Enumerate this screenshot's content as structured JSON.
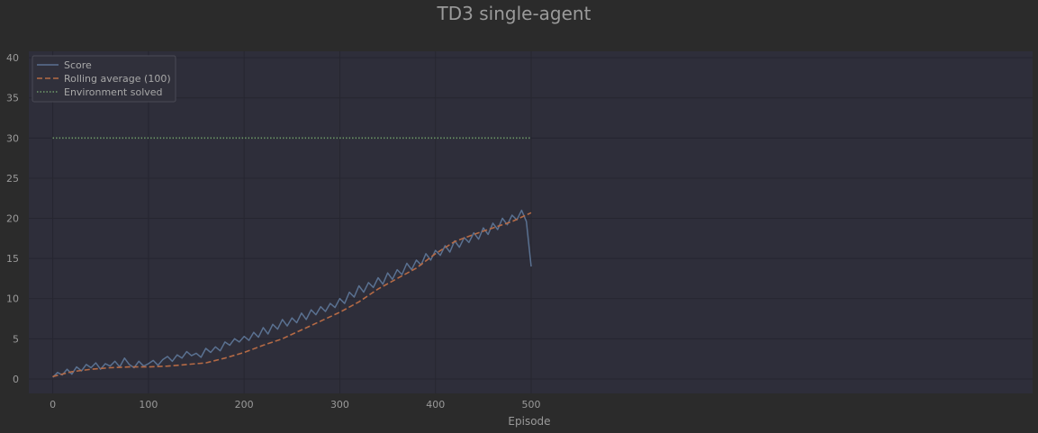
{
  "chart_data": {
    "type": "line",
    "title": "TD3 single-agent",
    "xlabel": "Episode",
    "ylabel": "",
    "xlim": [
      -25,
      1024
    ],
    "ylim": [
      -1.8,
      40.8
    ],
    "xticks": [
      0,
      100,
      200,
      300,
      400,
      500
    ],
    "yticks": [
      0,
      5,
      10,
      15,
      20,
      25,
      30,
      35,
      40
    ],
    "grid": true,
    "legend_position": "top-left",
    "series": [
      {
        "name": "Score",
        "style": "solid",
        "color": "#5a7191",
        "x": [
          0,
          5,
          10,
          15,
          20,
          25,
          30,
          35,
          40,
          45,
          50,
          55,
          60,
          65,
          70,
          75,
          80,
          85,
          90,
          95,
          100,
          105,
          110,
          115,
          120,
          125,
          130,
          135,
          140,
          145,
          150,
          155,
          160,
          165,
          170,
          175,
          180,
          185,
          190,
          195,
          200,
          205,
          210,
          215,
          220,
          225,
          230,
          235,
          240,
          245,
          250,
          255,
          260,
          265,
          270,
          275,
          280,
          285,
          290,
          295,
          300,
          305,
          310,
          315,
          320,
          325,
          330,
          335,
          340,
          345,
          350,
          355,
          360,
          365,
          370,
          375,
          380,
          385,
          390,
          395,
          400,
          405,
          410,
          415,
          420,
          425,
          430,
          435,
          440,
          445,
          450,
          455,
          460,
          465,
          470,
          475,
          480,
          485,
          490,
          495,
          500
        ],
        "y": [
          0.2,
          0.8,
          0.5,
          1.2,
          0.6,
          1.5,
          1.0,
          1.8,
          1.4,
          2.0,
          1.2,
          1.9,
          1.6,
          2.2,
          1.5,
          2.6,
          1.8,
          1.4,
          2.2,
          1.6,
          1.9,
          2.3,
          1.7,
          2.4,
          2.8,
          2.2,
          3.0,
          2.6,
          3.4,
          2.9,
          3.2,
          2.7,
          3.8,
          3.3,
          4.0,
          3.5,
          4.6,
          4.2,
          5.0,
          4.6,
          5.3,
          4.8,
          5.8,
          5.2,
          6.4,
          5.6,
          6.8,
          6.2,
          7.4,
          6.6,
          7.6,
          7.0,
          8.2,
          7.4,
          8.6,
          8.0,
          9.0,
          8.4,
          9.4,
          8.9,
          10.0,
          9.4,
          10.8,
          10.2,
          11.6,
          10.8,
          12.0,
          11.4,
          12.6,
          11.8,
          13.2,
          12.4,
          13.6,
          13.0,
          14.4,
          13.6,
          14.8,
          14.2,
          15.6,
          14.8,
          16.0,
          15.4,
          16.6,
          15.8,
          17.2,
          16.4,
          17.6,
          17.0,
          18.2,
          17.4,
          18.8,
          18.0,
          19.4,
          18.6,
          20.0,
          19.2,
          20.4,
          19.8,
          21.0,
          19.6,
          14.0
        ]
      },
      {
        "name": "Rolling average (100)",
        "style": "dashed",
        "color": "#b56a45",
        "x": [
          0,
          20,
          40,
          60,
          80,
          100,
          120,
          140,
          160,
          180,
          200,
          220,
          240,
          260,
          280,
          300,
          320,
          340,
          360,
          380,
          400,
          420,
          440,
          460,
          480,
          500
        ],
        "y": [
          0.3,
          0.9,
          1.2,
          1.4,
          1.5,
          1.5,
          1.6,
          1.8,
          2.0,
          2.6,
          3.3,
          4.2,
          5.0,
          6.1,
          7.2,
          8.3,
          9.6,
          11.2,
          12.5,
          13.8,
          15.6,
          17.1,
          18.0,
          18.8,
          19.6,
          20.7
        ]
      },
      {
        "name": "Environment solved",
        "style": "dotted",
        "color": "#6f9a6b",
        "x": [
          0,
          500
        ],
        "y": [
          30,
          30
        ]
      }
    ]
  }
}
